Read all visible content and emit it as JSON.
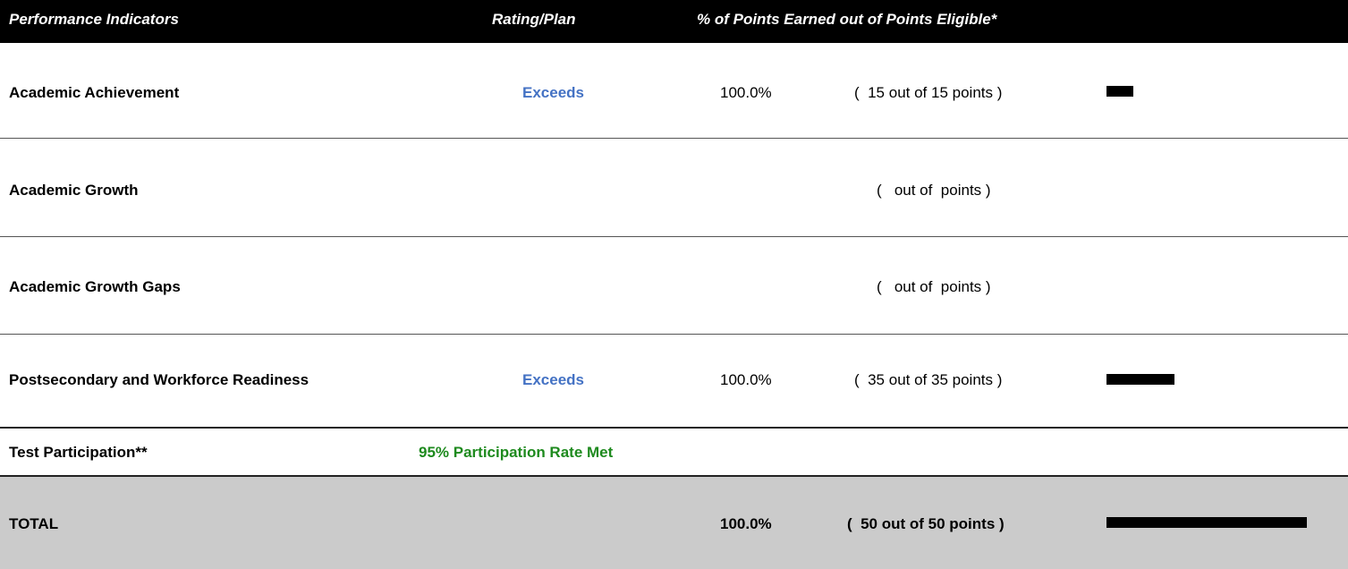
{
  "header": {
    "indicator": "Performance Indicators",
    "rating": "Rating/Plan",
    "points": "% of Points Earned out of Points Eligible*"
  },
  "rows": [
    {
      "indicator": "Academic Achievement",
      "rating": "Exceeds",
      "percent": "100.0%",
      "points": "(  15 out of 15 points )"
    },
    {
      "indicator": "Academic Growth",
      "points": "(   out of  points )"
    },
    {
      "indicator": "Academic Growth Gaps",
      "points": "(   out of  points )"
    },
    {
      "indicator": "Postsecondary and Workforce Readiness",
      "rating": "Exceeds",
      "percent": "100.0%",
      "points": "(  35 out of 35 points )"
    }
  ],
  "participation": {
    "label": "Test Participation**",
    "status": "95% Participation Rate Met"
  },
  "total": {
    "label": "TOTAL",
    "percent": "100.0%",
    "points": "(  50 out of 50 points )"
  }
}
